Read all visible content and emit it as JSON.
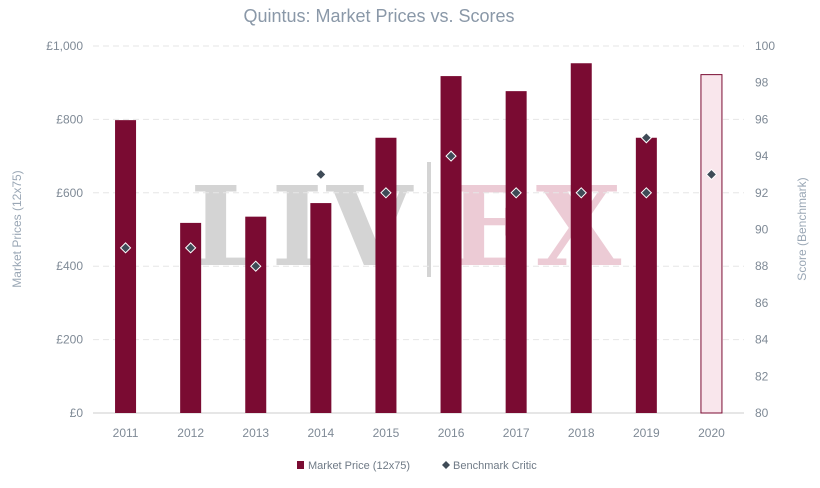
{
  "chart_data": {
    "type": "bar",
    "title": "Quintus: Market Prices vs. Scores",
    "ylabel": "Market Prices (12x75)",
    "y2label": "Score (Benchmark)",
    "categories": [
      "2011",
      "2012",
      "2013",
      "2014",
      "2015",
      "2016",
      "2017",
      "2018",
      "2019",
      "2020"
    ],
    "series": [
      {
        "name": "Market Price (12x75)",
        "kind": "bar",
        "axis": "left",
        "values": [
          798,
          518,
          535,
          572,
          750,
          918,
          877,
          953,
          750,
          922
        ],
        "highlight": [
          false,
          false,
          false,
          false,
          false,
          false,
          false,
          false,
          false,
          true
        ]
      },
      {
        "name": "Benchmark Critic",
        "kind": "marker",
        "axis": "right",
        "values": [
          89,
          89,
          88,
          93,
          92,
          94,
          92,
          92,
          95,
          93
        ],
        "values_lower": [
          null,
          null,
          null,
          null,
          null,
          null,
          null,
          null,
          92,
          null
        ]
      }
    ],
    "yticks": [
      "£0",
      "£200",
      "£400",
      "£600",
      "£800",
      "£1,000"
    ],
    "ylim": [
      0,
      1000
    ],
    "y2ticks": [
      "80",
      "82",
      "84",
      "86",
      "88",
      "90",
      "92",
      "94",
      "96",
      "98",
      "100"
    ],
    "y2lim": [
      80,
      100
    ],
    "grid": true,
    "legend_position": "bottom",
    "watermark": "LIV-EX",
    "colors": {
      "bar": "#7a0b32",
      "bar_highlight_fill": "#f9e6ec",
      "bar_highlight_stroke": "#7a0b32",
      "marker": "#3f4b57",
      "title": "#8a98a8",
      "watermark_grey": "#d2d2d2",
      "watermark_pink": "#ebc9d3"
    }
  }
}
